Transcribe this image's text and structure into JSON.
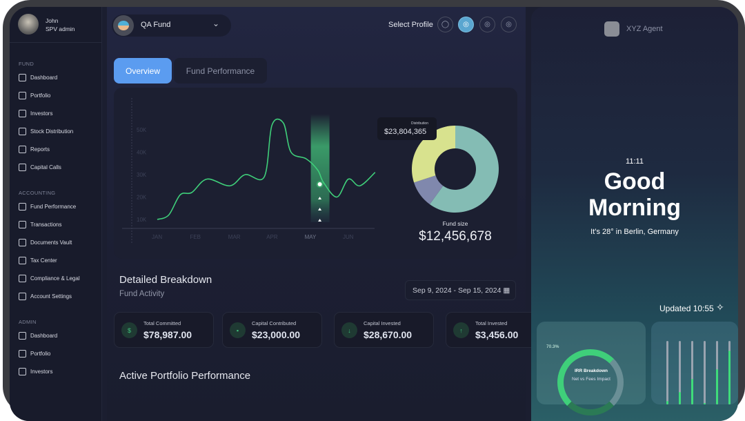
{
  "user": {
    "name": "John",
    "role": "SPV admin"
  },
  "sidebar": {
    "sections": [
      {
        "title": "FUND",
        "items": [
          "Dashboard",
          "Portfolio",
          "Investors",
          "Stock Distribution",
          "Reports",
          "Capital Calls"
        ]
      },
      {
        "title": "ACCOUNTING",
        "items": [
          "Fund Performance",
          "Transactions",
          "Documents Vault",
          "Tax Center",
          "Compliance & Legal",
          "Account Settings"
        ]
      },
      {
        "title": "ADMIN",
        "items": [
          "Dashboard",
          "Portfolio",
          "Investors"
        ]
      }
    ]
  },
  "header": {
    "fund": "QA Fund",
    "select_profile": "Select Profile"
  },
  "tabs": [
    "Overview",
    "Fund Performance"
  ],
  "chart_data": [
    {
      "type": "line",
      "x_ticks": [
        "JAN",
        "FEB",
        "MAR",
        "APR",
        "MAY",
        "JUN"
      ],
      "y_ticks": [
        "10K",
        "20K",
        "30K",
        "40K",
        "50K"
      ],
      "ylim": [
        10000,
        50000
      ],
      "series": [
        {
          "color": "#3fcf7a",
          "x": [
            0,
            0.3,
            0.6,
            0.9,
            1.3,
            1.9,
            2.3,
            2.8,
            3.0,
            3.3,
            3.5,
            3.9,
            4.2,
            4.35,
            4.7,
            5.0,
            5.3,
            5.7
          ],
          "y": [
            10000,
            12000,
            21000,
            22000,
            28000,
            25000,
            30000,
            29000,
            52000,
            53000,
            40000,
            37000,
            32000,
            26500,
            20000,
            28000,
            25000,
            31000
          ]
        }
      ],
      "highlight": "MAY"
    },
    {
      "type": "pie",
      "tooltip_label": "Distribution",
      "tooltip_value": "$23,804,365",
      "label": "Fund size",
      "value": "$12,456,678",
      "slices": [
        {
          "value": 60,
          "color": "#84bcb4"
        },
        {
          "value": 10,
          "color": "#8088ad"
        },
        {
          "value": 30,
          "color": "#d8e28e"
        }
      ]
    }
  ],
  "breakdown": {
    "title": "Detailed Breakdown",
    "subtitle": "Fund Activity",
    "date_range": "Sep 9, 2024 - Sep 15, 2024",
    "stats": [
      {
        "label": "Total Committed",
        "value": "$78,987.00",
        "icon": "$"
      },
      {
        "label": "Capital Contributed",
        "value": "$23,000.00",
        "icon": "▪"
      },
      {
        "label": "Capital Invested",
        "value": "$28,670.00",
        "icon": "↓"
      },
      {
        "label": "Total Invested",
        "value": "$3,456.00",
        "icon": "↑"
      }
    ]
  },
  "active_title": "Active Portfolio Performance",
  "agent": {
    "name": "XYZ Agent",
    "time": "11:11",
    "greeting": "Good Morning",
    "weather": "It’s 28° in Berlin, Germany",
    "updated": "Updated 10:55",
    "irr": {
      "percent": "70.3%",
      "title": "IRR Breakdown",
      "subtitle": "Net vs Fees Impact"
    },
    "bars": [
      0.05,
      0.2,
      0.4,
      0.02,
      0.55,
      0.85
    ]
  }
}
